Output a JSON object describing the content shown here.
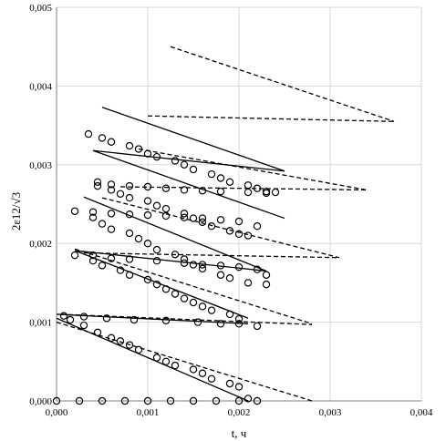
{
  "chart_data": {
    "type": "scatter",
    "title": "",
    "xlabel": "t, ч",
    "ylabel": "2ε12/√3",
    "xlim": [
      0,
      0.004
    ],
    "ylim": [
      0,
      0.005
    ],
    "x_ticks": [
      "0,000",
      "0,001",
      "0,002",
      "0,003",
      "0,004"
    ],
    "y_ticks": [
      "0,000",
      "0,001",
      "0,002",
      "0,003",
      "0,004",
      "0,005"
    ],
    "grid": true,
    "legend": "none",
    "series": [
      {
        "style": "markers",
        "points": [
          [
            0.0,
            0.0
          ],
          [
            0.00025,
            0.0
          ],
          [
            0.0005,
            0.0
          ],
          [
            0.00075,
            0.0
          ],
          [
            0.001,
            0.0
          ],
          [
            0.00125,
            0.0
          ],
          [
            0.0015,
            0.0
          ],
          [
            0.00175,
            0.0
          ],
          [
            0.002,
            0.0
          ],
          [
            0.0022,
            0.0
          ],
          [
            8e-05,
            0.00108
          ],
          [
            0.0003,
            0.00107
          ],
          [
            0.00055,
            0.00105
          ],
          [
            0.00085,
            0.00103
          ],
          [
            0.0012,
            0.00102
          ],
          [
            0.00155,
            0.001
          ],
          [
            0.0018,
            0.00098
          ],
          [
            0.002,
            0.00098
          ],
          [
            0.0022,
            0.00095
          ],
          [
            0.00015,
            0.00103
          ],
          [
            0.0003,
            0.00096
          ],
          [
            0.00045,
            0.00087
          ],
          [
            0.0006,
            0.0008
          ],
          [
            0.0007,
            0.00076
          ],
          [
            0.0008,
            0.00071
          ],
          [
            0.0009,
            0.00065
          ],
          [
            0.0011,
            0.00055
          ],
          [
            0.0012,
            0.0005
          ],
          [
            0.0013,
            0.00045
          ],
          [
            0.0015,
            0.0004
          ],
          [
            0.0016,
            0.00035
          ],
          [
            0.0017,
            0.00028
          ],
          [
            0.0019,
            0.00022
          ],
          [
            0.002,
            0.00018
          ],
          [
            0.0021,
            3e-05
          ],
          [
            0.0002,
            0.00185
          ],
          [
            0.0004,
            0.00185
          ],
          [
            0.0006,
            0.00181
          ],
          [
            0.0008,
            0.0018
          ],
          [
            0.0011,
            0.00178
          ],
          [
            0.0014,
            0.00175
          ],
          [
            0.0016,
            0.00173
          ],
          [
            0.0018,
            0.00172
          ],
          [
            0.002,
            0.0017
          ],
          [
            0.0022,
            0.00167
          ],
          [
            0.0004,
            0.00178
          ],
          [
            0.0005,
            0.00172
          ],
          [
            0.0007,
            0.00166
          ],
          [
            0.0008,
            0.0016
          ],
          [
            0.001,
            0.00154
          ],
          [
            0.0011,
            0.00148
          ],
          [
            0.0012,
            0.00142
          ],
          [
            0.0013,
            0.00136
          ],
          [
            0.0014,
            0.0013
          ],
          [
            0.0015,
            0.00125
          ],
          [
            0.0016,
            0.0012
          ],
          [
            0.0017,
            0.00115
          ],
          [
            0.0019,
            0.0011
          ],
          [
            0.002,
            0.00104
          ],
          [
            0.0002,
            0.00241
          ],
          [
            0.0004,
            0.0024
          ],
          [
            0.0006,
            0.00238
          ],
          [
            0.0008,
            0.00237
          ],
          [
            0.001,
            0.00236
          ],
          [
            0.0012,
            0.00235
          ],
          [
            0.0014,
            0.00233
          ],
          [
            0.0016,
            0.00232
          ],
          [
            0.0018,
            0.0023
          ],
          [
            0.002,
            0.00228
          ],
          [
            0.0004,
            0.00233
          ],
          [
            0.0005,
            0.00225
          ],
          [
            0.0006,
            0.00218
          ],
          [
            0.0008,
            0.00213
          ],
          [
            0.0009,
            0.00206
          ],
          [
            0.001,
            0.002
          ],
          [
            0.0011,
            0.00192
          ],
          [
            0.0013,
            0.00186
          ],
          [
            0.0014,
            0.0018
          ],
          [
            0.0015,
            0.00173
          ],
          [
            0.0016,
            0.00168
          ],
          [
            0.0018,
            0.0016
          ],
          [
            0.0019,
            0.00156
          ],
          [
            0.0021,
            0.0015
          ],
          [
            0.0023,
            0.00148
          ],
          [
            0.0023,
            0.0016
          ],
          [
            0.00045,
            0.00278
          ],
          [
            0.0006,
            0.00275
          ],
          [
            0.0008,
            0.00273
          ],
          [
            0.001,
            0.00272
          ],
          [
            0.0012,
            0.0027
          ],
          [
            0.0014,
            0.00268
          ],
          [
            0.0016,
            0.00267
          ],
          [
            0.0018,
            0.00266
          ],
          [
            0.0021,
            0.00265
          ],
          [
            0.0023,
            0.00264
          ],
          [
            0.00045,
            0.00273
          ],
          [
            0.0006,
            0.00268
          ],
          [
            0.0007,
            0.00263
          ],
          [
            0.0008,
            0.00258
          ],
          [
            0.001,
            0.00254
          ],
          [
            0.0011,
            0.00248
          ],
          [
            0.0012,
            0.00244
          ],
          [
            0.0014,
            0.00238
          ],
          [
            0.0015,
            0.00232
          ],
          [
            0.0016,
            0.00227
          ],
          [
            0.0017,
            0.00222
          ],
          [
            0.0019,
            0.00216
          ],
          [
            0.002,
            0.00212
          ],
          [
            0.0021,
            0.0021
          ],
          [
            0.0022,
            0.00222
          ],
          [
            0.00035,
            0.00339
          ],
          [
            0.0005,
            0.00334
          ],
          [
            0.0006,
            0.00329
          ],
          [
            0.0008,
            0.00324
          ],
          [
            0.0009,
            0.0032
          ],
          [
            0.001,
            0.00314
          ],
          [
            0.0011,
            0.0031
          ],
          [
            0.0013,
            0.00305
          ],
          [
            0.0014,
            0.003
          ],
          [
            0.0015,
            0.00294
          ],
          [
            0.0017,
            0.00288
          ],
          [
            0.0018,
            0.00283
          ],
          [
            0.0019,
            0.00278
          ],
          [
            0.0021,
            0.00274
          ],
          [
            0.0022,
            0.0027
          ],
          [
            0.0023,
            0.00266
          ],
          [
            0.0024,
            0.00265
          ]
        ]
      },
      {
        "style": "solid",
        "segments": [
          [
            [
              0.0,
              0.00105
            ],
            [
              0.0021,
              0.0
            ]
          ],
          [
            [
              0.0,
              0.0011
            ],
            [
              0.0021,
              0.00098
            ]
          ],
          [
            [
              0.0002,
              0.00191
            ],
            [
              0.0021,
              0.00105
            ]
          ],
          [
            [
              0.0002,
              0.00191
            ],
            [
              0.0023,
              0.00165
            ]
          ],
          [
            [
              0.0003,
              0.00259
            ],
            [
              0.0023,
              0.00165
            ]
          ],
          [
            [
              0.0004,
              0.00318
            ],
            [
              0.0025,
              0.00232
            ]
          ],
          [
            [
              0.0005,
              0.00373
            ],
            [
              0.0025,
              0.00292
            ]
          ],
          [
            [
              0.0004,
              0.00318
            ],
            [
              0.0025,
              0.00292
            ]
          ]
        ]
      },
      {
        "style": "dashed",
        "segments": [
          [
            [
              0.0,
              0.001
            ],
            [
              0.0028,
              0.0
            ]
          ],
          [
            [
              5e-05,
              0.0011
            ],
            [
              0.0028,
              0.00097
            ]
          ],
          [
            [
              0.0002,
              0.00193
            ],
            [
              0.0028,
              0.00098
            ]
          ],
          [
            [
              0.0003,
              0.00188
            ],
            [
              0.0031,
              0.00182
            ]
          ],
          [
            [
              0.0005,
              0.00258
            ],
            [
              0.0031,
              0.00182
            ]
          ],
          [
            [
              0.0007,
              0.00272
            ],
            [
              0.0034,
              0.00268
            ]
          ],
          [
            [
              0.0009,
              0.0032
            ],
            [
              0.0034,
              0.00268
            ]
          ],
          [
            [
              0.001,
              0.00362
            ],
            [
              0.0037,
              0.00355
            ]
          ],
          [
            [
              0.00125,
              0.0045
            ],
            [
              0.0037,
              0.00355
            ]
          ]
        ]
      }
    ]
  }
}
